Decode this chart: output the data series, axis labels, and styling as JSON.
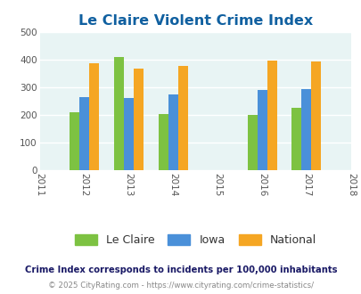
{
  "title": "Le Claire Violent Crime Index",
  "all_years": [
    2011,
    2012,
    2013,
    2014,
    2015,
    2016,
    2017,
    2018
  ],
  "data_years": [
    2012,
    2013,
    2014,
    2016,
    2017
  ],
  "le_claire": [
    210,
    410,
    205,
    202,
    228
  ],
  "iowa": [
    265,
    262,
    275,
    292,
    295
  ],
  "national": [
    388,
    368,
    378,
    398,
    394
  ],
  "color_le_claire": "#7dc242",
  "color_iowa": "#4a90d9",
  "color_national": "#f5a623",
  "bg_color": "#e8f4f4",
  "title_color": "#1060a0",
  "ylim": [
    0,
    500
  ],
  "yticks": [
    0,
    100,
    200,
    300,
    400,
    500
  ],
  "bar_width": 0.22,
  "footnote1": "Crime Index corresponds to incidents per 100,000 inhabitants",
  "footnote2": "© 2025 CityRating.com - https://www.cityrating.com/crime-statistics/",
  "footnote1_color": "#1a1a66",
  "footnote2_color": "#888888"
}
